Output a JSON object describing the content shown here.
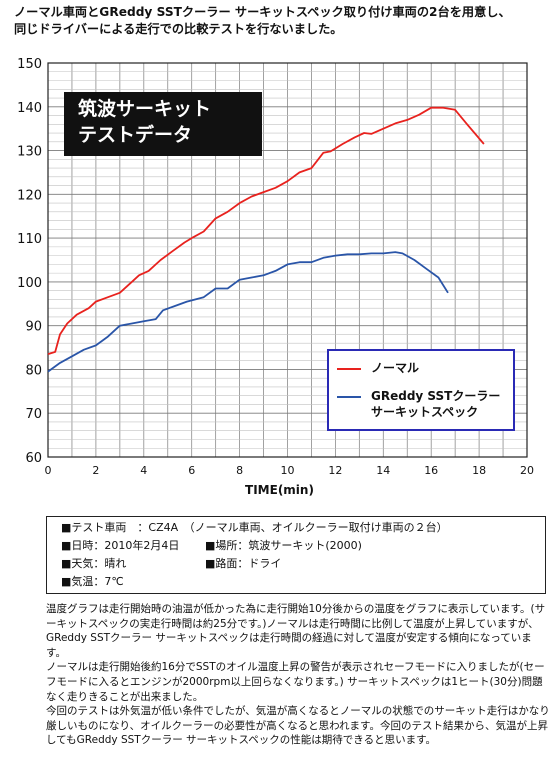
{
  "header": {
    "line1": "ノーマル車両とGReddy SSTクーラー サーキットスペック取り付け車両の2台を用意し、",
    "line2": "同じドライバーによる走行での比較テストを行ないました。"
  },
  "inset": {
    "line1": "筑波サーキット",
    "line2": "テストデータ"
  },
  "colors": {
    "normal": "#e8221e",
    "gr": "#2a55a8",
    "legend_border": "#2a2ab5"
  },
  "chart_data": {
    "type": "line",
    "xlabel": "TIME(min)",
    "ylabel": "",
    "xlim": [
      0,
      20
    ],
    "ylim": [
      60,
      150
    ],
    "xticks": [
      0,
      2,
      4,
      6,
      8,
      10,
      12,
      14,
      16,
      18,
      20
    ],
    "yticks": [
      60,
      70,
      80,
      90,
      100,
      110,
      120,
      130,
      140,
      150
    ],
    "grid": true,
    "legend_position": "lower-right",
    "series": [
      {
        "name": "ノーマル",
        "color": "#e8221e",
        "points": [
          [
            0,
            83.5
          ],
          [
            0.3,
            84
          ],
          [
            0.5,
            88
          ],
          [
            0.8,
            90.5
          ],
          [
            1.2,
            92.5
          ],
          [
            1.7,
            94
          ],
          [
            2,
            95.5
          ],
          [
            2.5,
            96.5
          ],
          [
            3,
            97.5
          ],
          [
            3.5,
            100
          ],
          [
            3.8,
            101.5
          ],
          [
            4.2,
            102.5
          ],
          [
            4.7,
            105
          ],
          [
            5.2,
            107
          ],
          [
            5.7,
            109
          ],
          [
            6,
            110
          ],
          [
            6.5,
            111.5
          ],
          [
            7,
            114.5
          ],
          [
            7.5,
            116
          ],
          [
            8,
            118
          ],
          [
            8.5,
            119.5
          ],
          [
            9,
            120.5
          ],
          [
            9.5,
            121.5
          ],
          [
            10,
            123
          ],
          [
            10.5,
            125
          ],
          [
            11,
            126
          ],
          [
            11.5,
            129.5
          ],
          [
            11.8,
            129.8
          ],
          [
            12.3,
            131.5
          ],
          [
            12.8,
            133
          ],
          [
            13.2,
            134
          ],
          [
            13.5,
            133.8
          ],
          [
            14,
            135
          ],
          [
            14.5,
            136.2
          ],
          [
            15,
            137
          ],
          [
            15.5,
            138.2
          ],
          [
            16,
            139.8
          ],
          [
            16.5,
            139.8
          ],
          [
            17,
            139.3
          ],
          [
            17.5,
            136
          ],
          [
            18.2,
            131.5
          ]
        ]
      },
      {
        "name": "GReddy SSTクーラー サーキットスペック",
        "color": "#2a55a8",
        "points": [
          [
            0,
            79.5
          ],
          [
            0.5,
            81.5
          ],
          [
            1,
            83
          ],
          [
            1.5,
            84.5
          ],
          [
            2,
            85.5
          ],
          [
            2.5,
            87.5
          ],
          [
            3,
            90
          ],
          [
            3.5,
            90.5
          ],
          [
            4,
            91
          ],
          [
            4.5,
            91.5
          ],
          [
            4.8,
            93.5
          ],
          [
            5.3,
            94.5
          ],
          [
            5.8,
            95.5
          ],
          [
            6.5,
            96.5
          ],
          [
            7,
            98.5
          ],
          [
            7.5,
            98.5
          ],
          [
            8,
            100.5
          ],
          [
            8.5,
            101
          ],
          [
            9,
            101.5
          ],
          [
            9.5,
            102.5
          ],
          [
            10,
            104
          ],
          [
            10.5,
            104.5
          ],
          [
            11,
            104.5
          ],
          [
            11.5,
            105.5
          ],
          [
            12,
            106
          ],
          [
            12.5,
            106.3
          ],
          [
            13,
            106.3
          ],
          [
            13.5,
            106.5
          ],
          [
            14,
            106.5
          ],
          [
            14.5,
            106.8
          ],
          [
            14.8,
            106.5
          ],
          [
            15.3,
            105
          ],
          [
            15.8,
            103
          ],
          [
            16.3,
            101
          ],
          [
            16.7,
            97.5
          ]
        ]
      }
    ]
  },
  "legend": {
    "normal": "ノーマル",
    "gr_line1": "GReddy SSTクーラー",
    "gr_line2": "サーキットスペック"
  },
  "info": {
    "vehicle": "■テスト車両　：CZ4A　（ノーマル車両、オイルクーラー取付け車両の２台）",
    "date": "■日時：2010年2月4日",
    "place": "■場所：筑波サーキット(2000)",
    "weather": "■天気：晴れ",
    "road": "■路面：ドライ",
    "temp": "■気温：7℃"
  },
  "description": {
    "p1": "温度グラフは走行開始時の油温が低かった為に走行開始10分後からの温度をグラフに表示しています。(サーキットスペックの実走行時間は約25分です。)ノーマルは走行時間に比例して温度が上昇していますが、GReddy SSTクーラー サーキットスペックは走行時間の経過に対して温度が安定する傾向になっています。",
    "p2": "ノーマルは走行開始後約16分でSSTのオイル温度上昇の警告が表示されセーフモードに入りましたが(セーフモードに入るとエンジンが2000rpm以上回らなくなります。) サーキットスペックは1ヒート(30分)問題なく走りきることが出来ました。",
    "p3": "今回のテストは外気温が低い条件でしたが、気温が高くなるとノーマルの状態でのサーキット走行はかなり厳しいものになり、オイルクーラーの必要性が高くなると思われます。今回のテスト結果から、気温が上昇してもGReddy SSTクーラー サーキットスペックの性能は期待できると思います。"
  }
}
